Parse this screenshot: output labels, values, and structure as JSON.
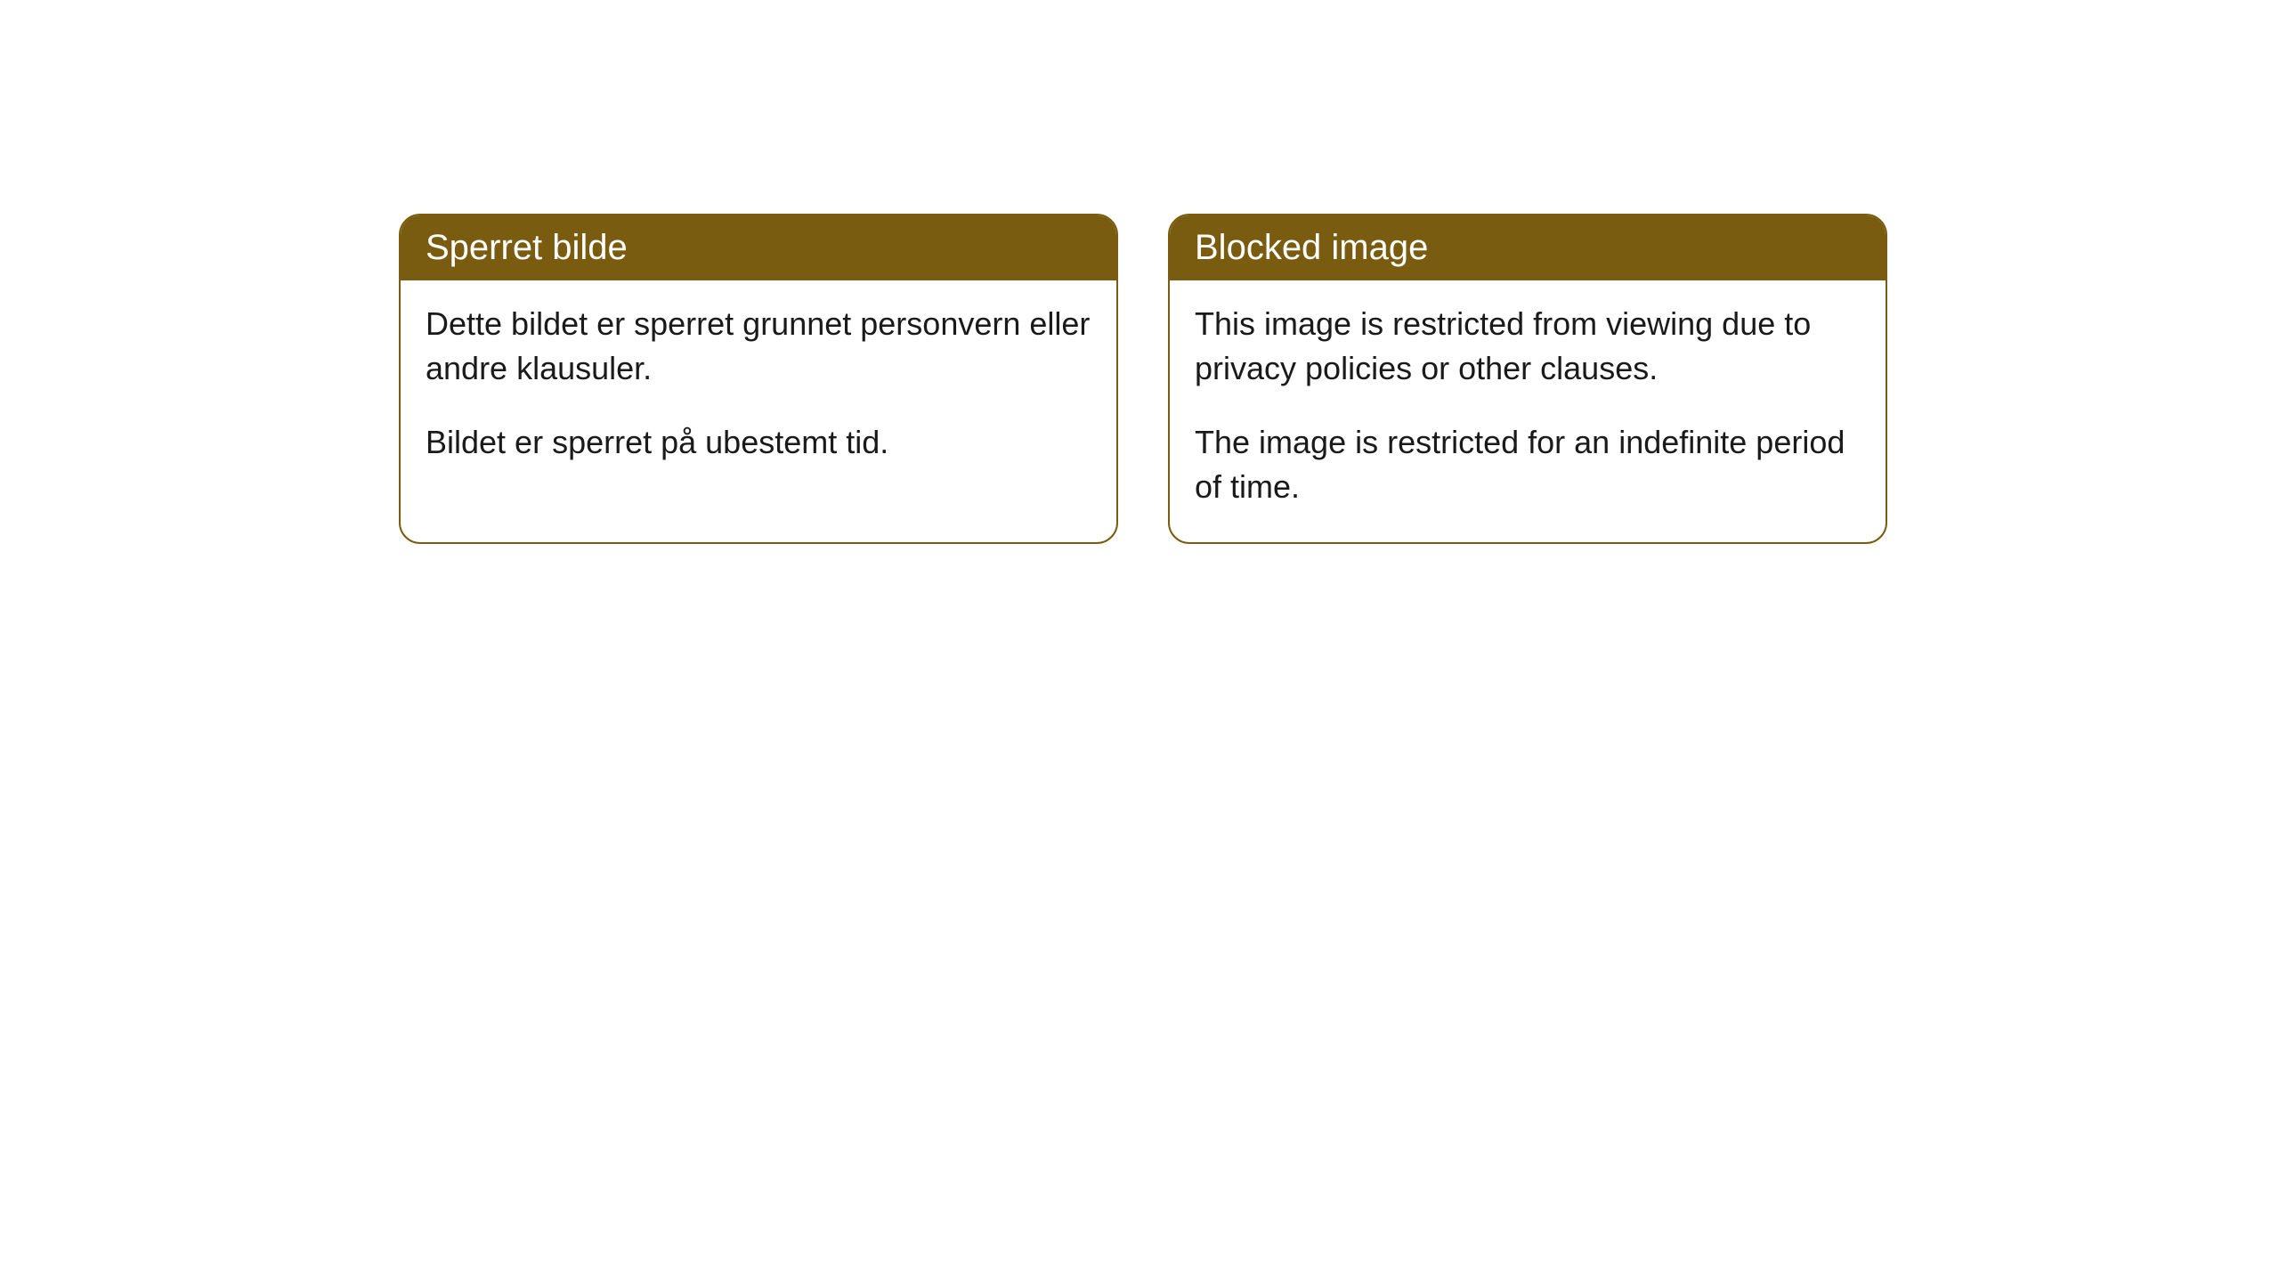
{
  "cards": [
    {
      "title": "Sperret bilde",
      "paragraph1": "Dette bildet er sperret grunnet personvern eller andre klausuler.",
      "paragraph2": "Bildet er sperret på ubestemt tid."
    },
    {
      "title": "Blocked image",
      "paragraph1": "This image is restricted from viewing due to privacy policies or other clauses.",
      "paragraph2": "The image is restricted for an indefinite period of time."
    }
  ],
  "style": {
    "header_bg": "#7a5c11",
    "header_text_color": "#ffffff",
    "border_color": "#7a5c11",
    "body_bg": "#ffffff",
    "body_text_color": "#1a1a1a",
    "border_radius": 24,
    "title_fontsize": 40,
    "body_fontsize": 36
  }
}
